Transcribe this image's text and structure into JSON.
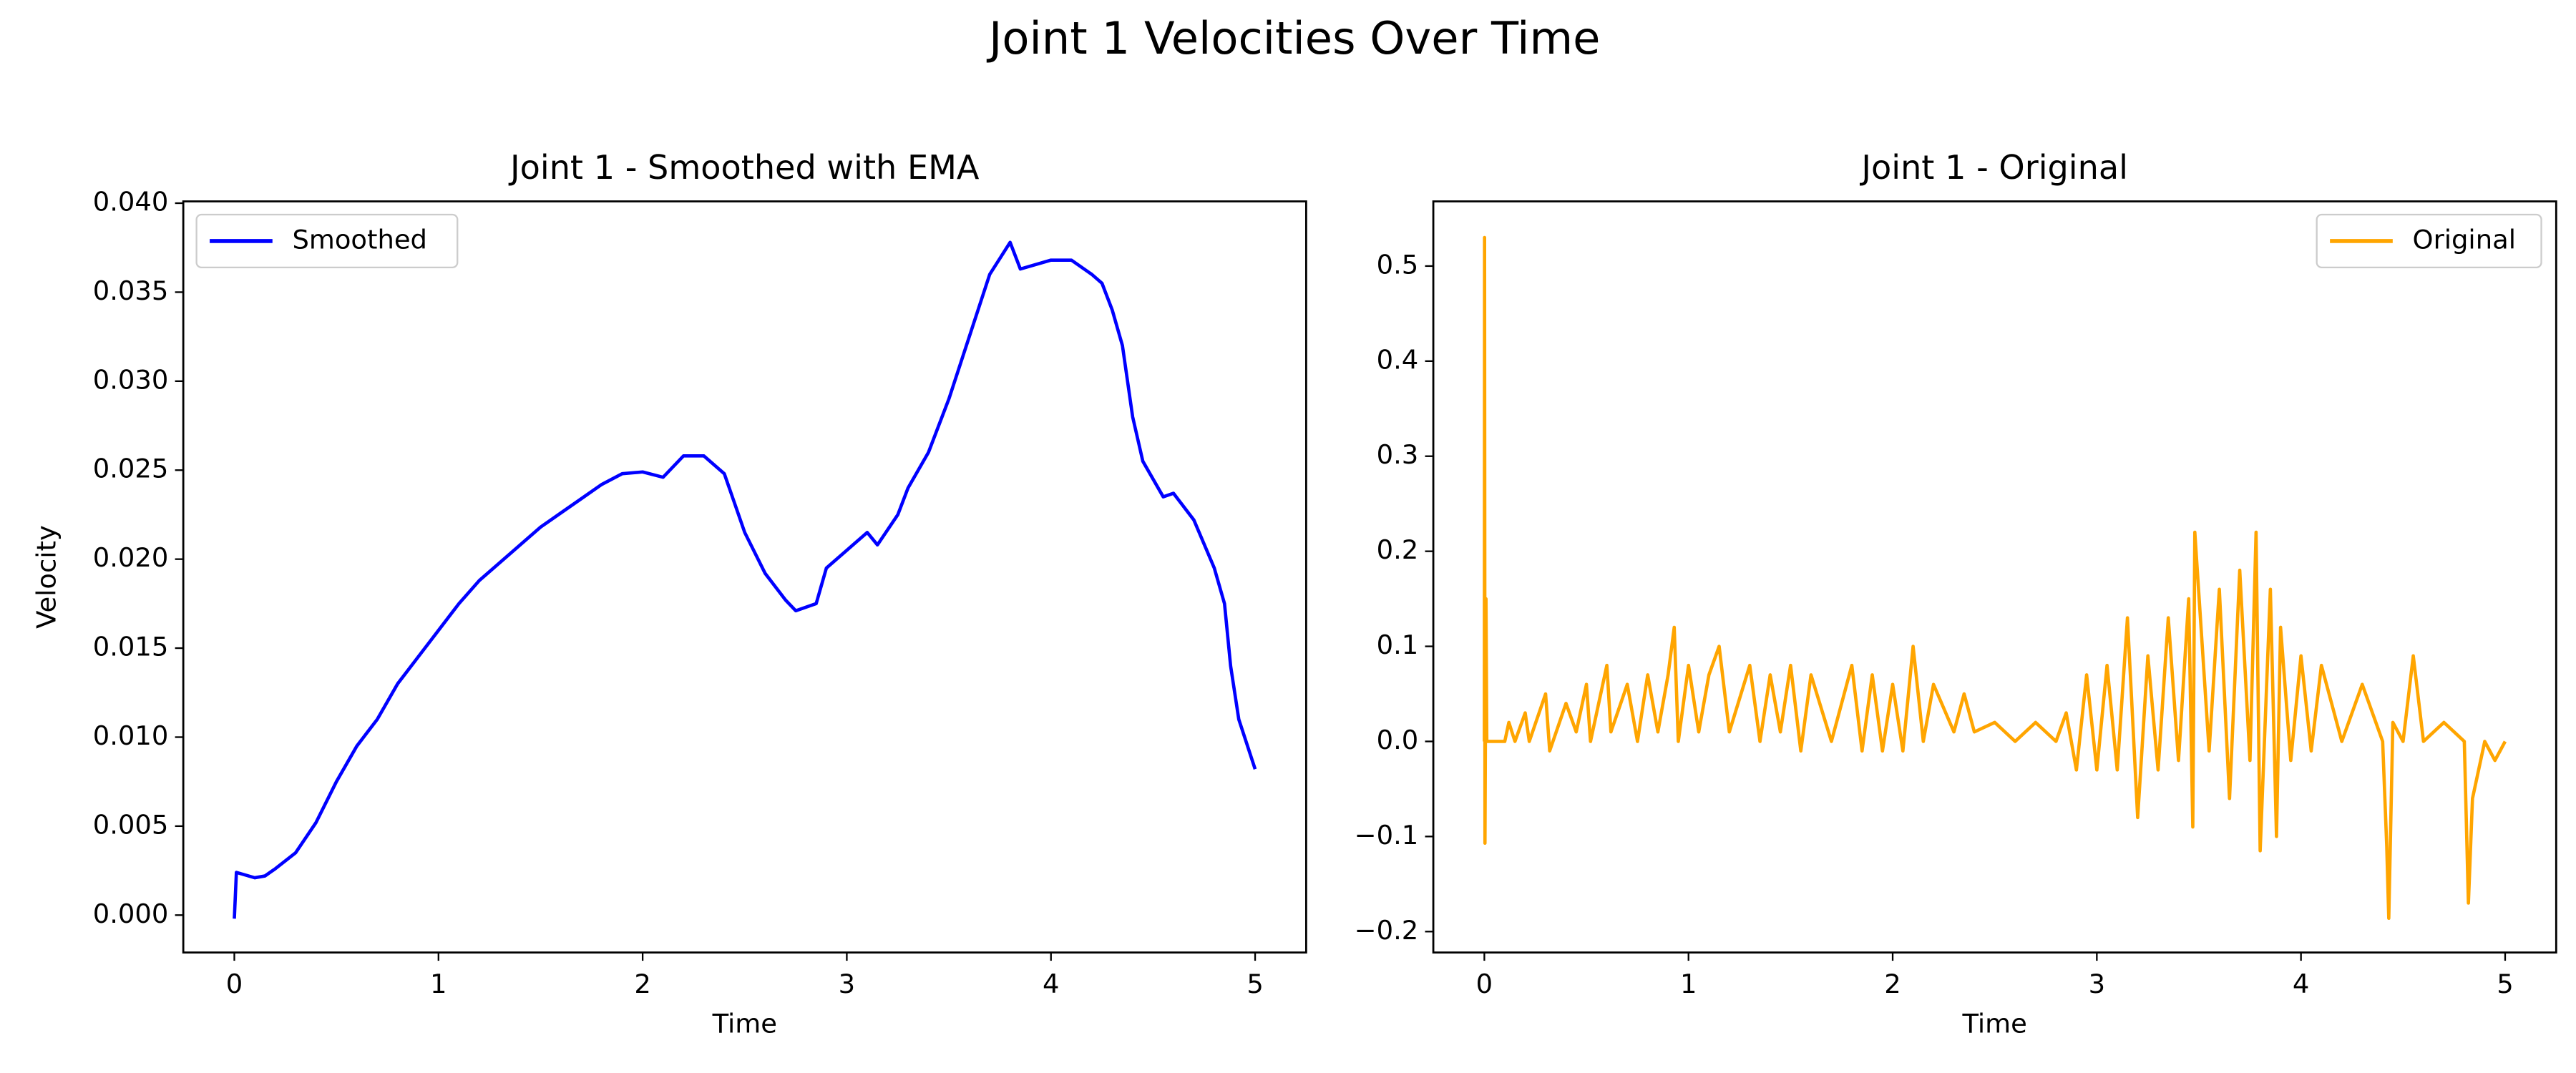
{
  "title": "Joint 1 Velocities Over Time",
  "chart_data": [
    {
      "type": "line",
      "title": "Joint 1 - Smoothed with EMA",
      "xlabel": "Time",
      "ylabel": "Velocity",
      "x": [
        0,
        0.01,
        0.1,
        0.15,
        0.2,
        0.3,
        0.4,
        0.5,
        0.6,
        0.7,
        0.8,
        0.9,
        1.0,
        1.1,
        1.2,
        1.3,
        1.4,
        1.5,
        1.6,
        1.7,
        1.8,
        1.9,
        2.0,
        2.1,
        2.2,
        2.3,
        2.4,
        2.5,
        2.6,
        2.7,
        2.75,
        2.85,
        2.9,
        3.0,
        3.1,
        3.15,
        3.25,
        3.3,
        3.4,
        3.5,
        3.6,
        3.7,
        3.8,
        3.85,
        4.0,
        4.1,
        4.2,
        4.25,
        4.3,
        4.35,
        4.4,
        4.45,
        4.55,
        4.6,
        4.7,
        4.8,
        4.85,
        4.88,
        4.92,
        5.0
      ],
      "series": [
        {
          "name": "Smoothed",
          "color": "#0000ff",
          "values": [
            -0.0002,
            0.0024,
            0.0021,
            0.0022,
            0.0026,
            0.0035,
            0.0052,
            0.0075,
            0.0095,
            0.011,
            0.013,
            0.0145,
            0.016,
            0.0175,
            0.0188,
            0.0198,
            0.0208,
            0.0218,
            0.0226,
            0.0234,
            0.0242,
            0.0248,
            0.0249,
            0.0246,
            0.0258,
            0.0258,
            0.0248,
            0.0215,
            0.0192,
            0.0177,
            0.0171,
            0.0175,
            0.0195,
            0.0205,
            0.0215,
            0.0208,
            0.0225,
            0.024,
            0.026,
            0.029,
            0.0325,
            0.036,
            0.0378,
            0.0363,
            0.0368,
            0.0368,
            0.036,
            0.0355,
            0.034,
            0.032,
            0.028,
            0.0255,
            0.0235,
            0.0237,
            0.0222,
            0.0195,
            0.0175,
            0.014,
            0.011,
            0.0082
          ]
        }
      ],
      "xlim": [
        -0.25,
        5.25
      ],
      "ylim": [
        -0.0021,
        0.0401
      ],
      "xticks": [
        0,
        1,
        2,
        3,
        4,
        5
      ],
      "yticks": [
        {
          "value": 0,
          "label": "0.000"
        },
        {
          "value": 0.005,
          "label": "0.005"
        },
        {
          "value": 0.01,
          "label": "0.010"
        },
        {
          "value": 0.015,
          "label": "0.015"
        },
        {
          "value": 0.02,
          "label": "0.020"
        },
        {
          "value": 0.025,
          "label": "0.025"
        },
        {
          "value": 0.03,
          "label": "0.030"
        },
        {
          "value": 0.035,
          "label": "0.035"
        },
        {
          "value": 0.04,
          "label": "0.040"
        }
      ],
      "legend": "upper left"
    },
    {
      "type": "line",
      "title": "Joint 1 - Original",
      "xlabel": "Time",
      "x": [
        0,
        0.001,
        0.003,
        0.008,
        0.012,
        0.1,
        0.12,
        0.15,
        0.2,
        0.22,
        0.3,
        0.32,
        0.4,
        0.45,
        0.5,
        0.52,
        0.6,
        0.62,
        0.7,
        0.75,
        0.8,
        0.85,
        0.9,
        0.93,
        0.95,
        1.0,
        1.05,
        1.1,
        1.15,
        1.2,
        1.3,
        1.35,
        1.4,
        1.45,
        1.5,
        1.55,
        1.6,
        1.7,
        1.8,
        1.85,
        1.9,
        1.95,
        2.0,
        2.05,
        2.1,
        2.15,
        2.2,
        2.3,
        2.35,
        2.4,
        2.5,
        2.6,
        2.7,
        2.8,
        2.85,
        2.9,
        2.95,
        3.0,
        3.05,
        3.1,
        3.15,
        3.2,
        3.25,
        3.3,
        3.35,
        3.4,
        3.45,
        3.47,
        3.48,
        3.55,
        3.6,
        3.65,
        3.7,
        3.75,
        3.78,
        3.8,
        3.85,
        3.88,
        3.9,
        3.95,
        4.0,
        4.05,
        4.1,
        4.2,
        4.3,
        4.4,
        4.42,
        4.43,
        4.45,
        4.5,
        4.55,
        4.6,
        4.7,
        4.8,
        4.82,
        4.84,
        4.9,
        4.95,
        5.0
      ],
      "series": [
        {
          "name": "Original",
          "color": "#ffa500",
          "values": [
            0,
            0.53,
            -0.107,
            0.15,
            0.0,
            0.0,
            0.02,
            0.0,
            0.03,
            0.0,
            0.05,
            -0.01,
            0.04,
            0.01,
            0.06,
            0.0,
            0.08,
            0.01,
            0.06,
            0.0,
            0.07,
            0.01,
            0.07,
            0.12,
            0.0,
            0.08,
            0.01,
            0.07,
            0.1,
            0.01,
            0.08,
            0.0,
            0.07,
            0.01,
            0.08,
            -0.01,
            0.07,
            0.0,
            0.08,
            -0.01,
            0.07,
            -0.01,
            0.06,
            -0.01,
            0.1,
            0.0,
            0.06,
            0.01,
            0.05,
            0.01,
            0.02,
            0.0,
            0.02,
            0.0,
            0.03,
            -0.03,
            0.07,
            -0.03,
            0.08,
            -0.03,
            0.13,
            -0.08,
            0.09,
            -0.03,
            0.13,
            -0.02,
            0.15,
            -0.09,
            0.22,
            -0.01,
            0.16,
            -0.06,
            0.18,
            -0.02,
            0.22,
            -0.115,
            0.16,
            -0.1,
            0.12,
            -0.02,
            0.09,
            -0.01,
            0.08,
            0.0,
            0.06,
            0.0,
            -0.11,
            -0.186,
            0.02,
            0.0,
            0.09,
            0.0,
            0.02,
            0.0,
            -0.17,
            -0.06,
            0.0,
            -0.02,
            0.0
          ]
        }
      ],
      "xlim": [
        -0.25,
        5.25
      ],
      "ylim": [
        -0.222,
        0.568
      ],
      "xticks": [
        0,
        1,
        2,
        3,
        4,
        5
      ],
      "yticks": [
        {
          "value": -0.2,
          "label": "−0.2"
        },
        {
          "value": -0.1,
          "label": "−0.1"
        },
        {
          "value": 0,
          "label": "0.0"
        },
        {
          "value": 0.1,
          "label": "0.1"
        },
        {
          "value": 0.2,
          "label": "0.2"
        },
        {
          "value": 0.3,
          "label": "0.3"
        },
        {
          "value": 0.4,
          "label": "0.4"
        },
        {
          "value": 0.5,
          "label": "0.5"
        }
      ],
      "legend": "upper right"
    }
  ]
}
